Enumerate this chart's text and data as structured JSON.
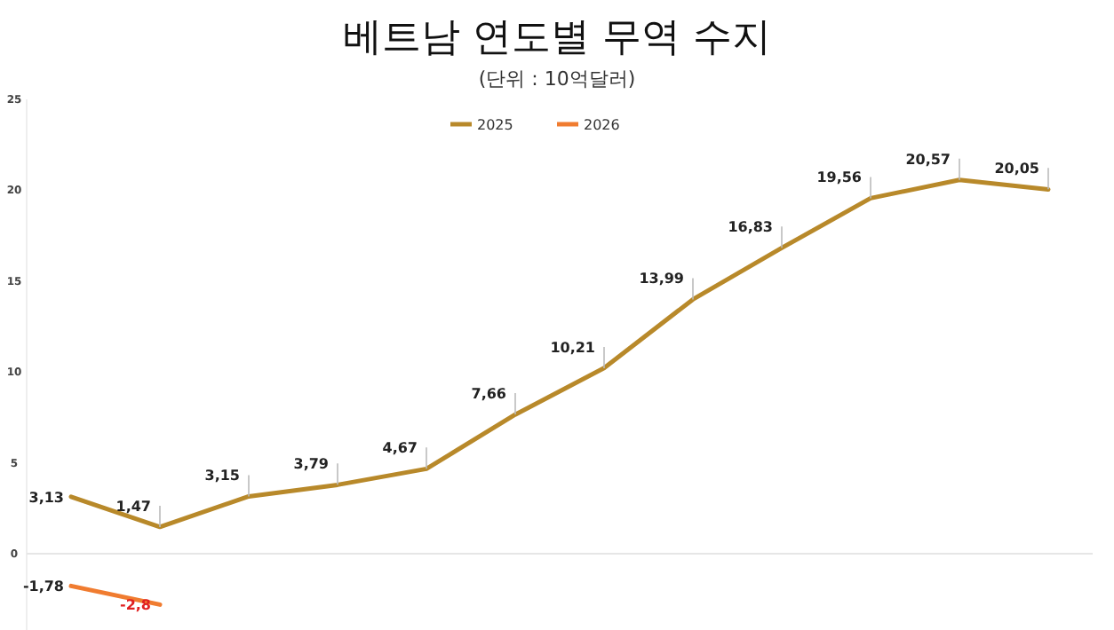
{
  "chart_data": {
    "type": "line",
    "title": "베트남 연도별 무역 수지",
    "subtitle": "(단위 : 10억달러)",
    "categories": [
      null,
      null,
      null,
      null,
      null,
      null,
      null,
      null,
      null,
      null,
      null,
      null
    ],
    "series": [
      {
        "name": "2025",
        "color": "#b8892a",
        "values": [
          3.13,
          1.47,
          3.15,
          3.79,
          4.67,
          7.66,
          10.21,
          13.99,
          16.83,
          19.56,
          20.57,
          20.05
        ],
        "value_labels": [
          "3,13",
          "1,47",
          "3,15",
          "3,79",
          "4,67",
          "7,66",
          "10,21",
          "13,99",
          "16,83",
          "19,56",
          "20,57",
          "20,05"
        ]
      },
      {
        "name": "2026",
        "color": "#f07c30",
        "values": [
          -1.78,
          -2.8,
          null,
          null,
          null,
          null,
          null,
          null,
          null,
          null,
          null,
          null
        ],
        "value_labels": [
          "-1,78",
          "-2,8",
          null,
          null,
          null,
          null,
          null,
          null,
          null,
          null,
          null,
          null
        ]
      }
    ],
    "ylim": [
      -4.2,
      25
    ],
    "yticks": [
      0,
      5,
      10,
      15,
      20,
      25
    ],
    "ref_lines": [
      {
        "axis": "y",
        "value": 0,
        "color": "#e6e6e6"
      }
    ],
    "legend": "top",
    "grid": false,
    "marker": "none",
    "line_style": "solid"
  }
}
